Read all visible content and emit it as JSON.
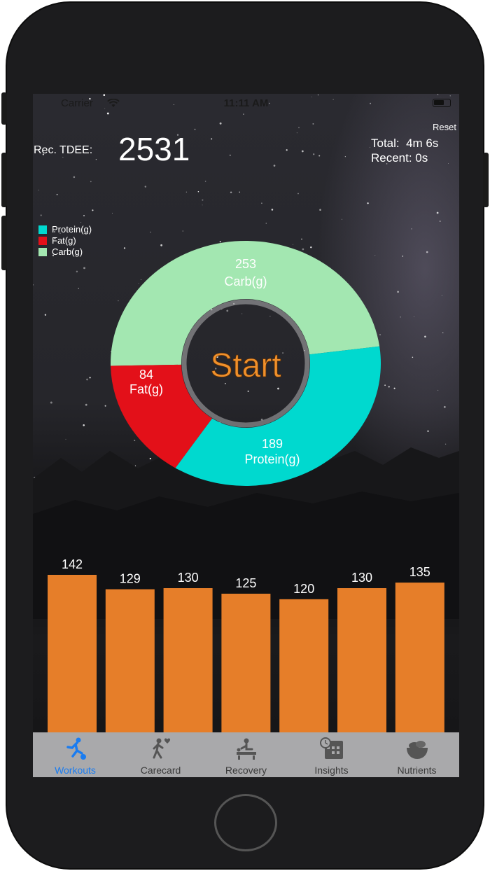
{
  "status_bar": {
    "carrier": "Carrier",
    "time": "11:11 AM"
  },
  "header": {
    "reset_label": "Reset",
    "tdee_label": "Rec. TDEE:",
    "tdee_value": "2531",
    "total_text": "Total:  4m 6s",
    "recent_text": "Recent: 0s"
  },
  "legend": [
    {
      "label": "Protein(g)",
      "color": "#00d9cf"
    },
    {
      "label": "Fat(g)",
      "color": "#e31019"
    },
    {
      "label": "Carb(g)",
      "color": "#a3e7b1"
    }
  ],
  "donut": {
    "center_label": "Start",
    "center_color": "#f0902b",
    "slices": [
      {
        "value": "253",
        "label": "Carb(g)",
        "color": "#a3e7b1"
      },
      {
        "value": "84",
        "label": "Fat(g)",
        "color": "#e31019"
      },
      {
        "value": "189",
        "label": "Protein(g)",
        "color": "#00d9cf"
      }
    ]
  },
  "chart_data": {
    "type": "bar",
    "values": [
      142,
      129,
      130,
      125,
      120,
      130,
      135
    ],
    "color": "#e67e29"
  },
  "tabs": [
    {
      "label": "Workouts",
      "icon": "running-ball-icon",
      "active": true
    },
    {
      "label": "Carecard",
      "icon": "walking-heart-icon",
      "active": false
    },
    {
      "label": "Recovery",
      "icon": "massage-icon",
      "active": false
    },
    {
      "label": "Insights",
      "icon": "calendar-clock-icon",
      "active": false
    },
    {
      "label": "Nutrients",
      "icon": "salad-bowl-icon",
      "active": false
    }
  ]
}
